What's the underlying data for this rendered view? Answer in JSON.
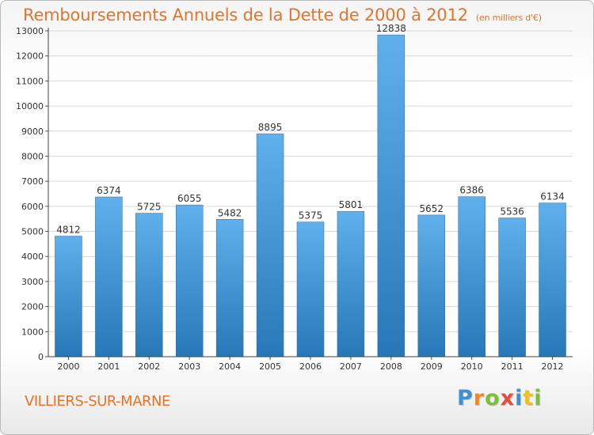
{
  "title": "Remboursements Annuels de la Dette de 2000 à 2012",
  "unit": "(en milliers d'€)",
  "town": "VILLIERS-SUR-MARNE",
  "logo": {
    "text": "Proxiti",
    "letter_colors": [
      "#3f8fd2",
      "#f08a24",
      "#7bbf3a",
      "#e84c3d",
      "#3f8fd2",
      "#f0c020",
      "#7bbf3a"
    ]
  },
  "colors": {
    "bar_top": "#5fb0ec",
    "bar_bottom": "#2877b8",
    "accent": "#e4742c",
    "grid": "#d9d9d9"
  },
  "chart_data": {
    "type": "bar",
    "title": "Remboursements Annuels de la Dette de 2000 à 2012",
    "xlabel": "",
    "ylabel": "",
    "categories": [
      "2000",
      "2001",
      "2002",
      "2003",
      "2004",
      "2005",
      "2006",
      "2007",
      "2008",
      "2009",
      "2010",
      "2011",
      "2012"
    ],
    "values": [
      4812,
      6374,
      5725,
      6055,
      5482,
      8895,
      5375,
      5801,
      12838,
      5652,
      6386,
      5536,
      6134
    ],
    "ylim": [
      0,
      13000
    ],
    "yticks": [
      0,
      1000,
      2000,
      3000,
      4000,
      5000,
      6000,
      7000,
      8000,
      9000,
      10000,
      11000,
      12000,
      13000
    ],
    "grid": true,
    "legend": "none"
  }
}
